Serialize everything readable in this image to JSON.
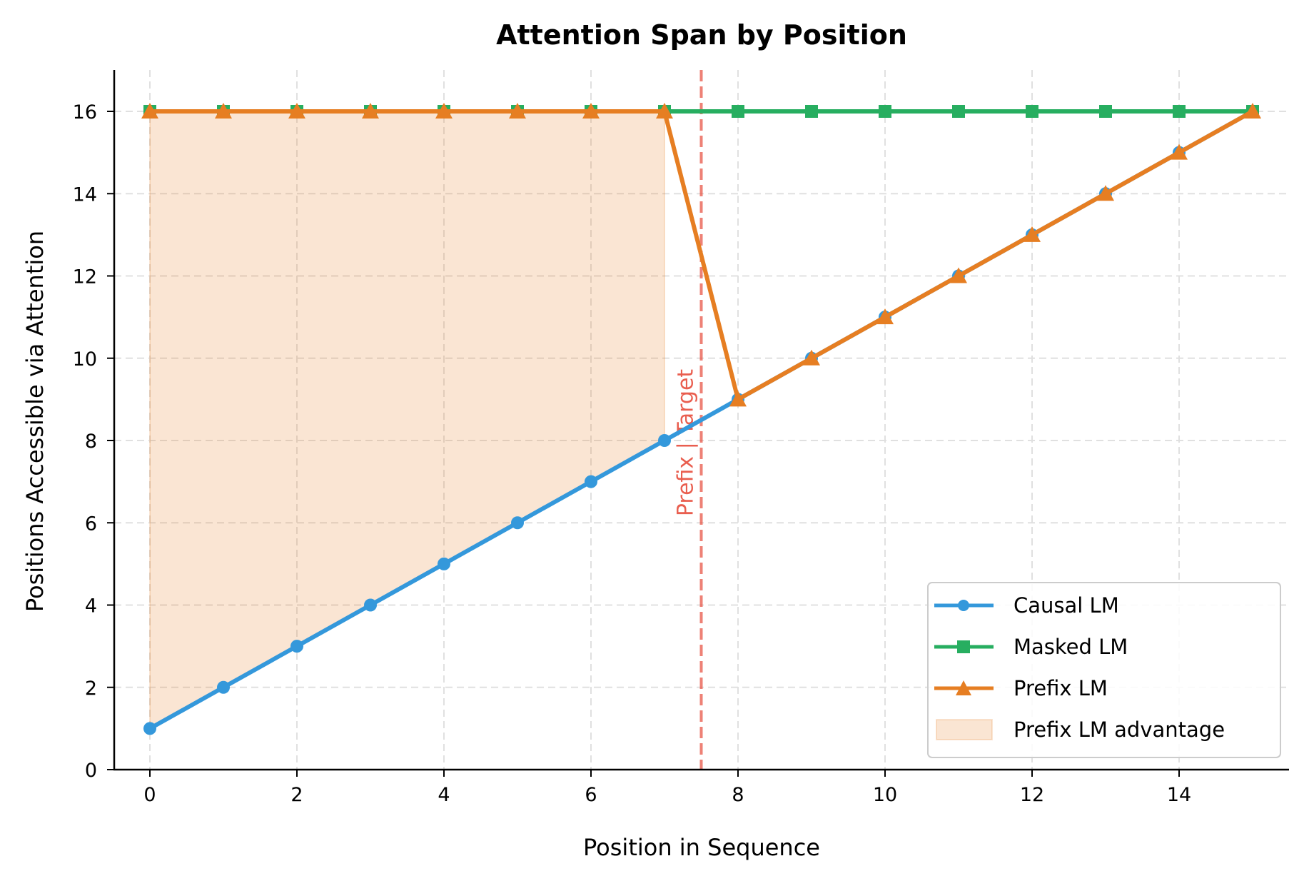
{
  "chart_data": {
    "type": "line",
    "title": "Attention Span by Position",
    "xlabel": "Position in Sequence",
    "ylabel": "Positions Accessible via Attention",
    "x": [
      0,
      1,
      2,
      3,
      4,
      5,
      6,
      7,
      8,
      9,
      10,
      11,
      12,
      13,
      14,
      15
    ],
    "xlim": [
      -0.5,
      15.5
    ],
    "ylim": [
      0,
      17
    ],
    "xticks": [
      0,
      2,
      4,
      6,
      8,
      10,
      12,
      14
    ],
    "yticks": [
      0,
      2,
      4,
      6,
      8,
      10,
      12,
      14,
      16
    ],
    "grid": true,
    "legend_position": "lower right",
    "series": [
      {
        "name": "Causal LM",
        "color": "#3498db",
        "marker": "circle",
        "values": [
          1,
          2,
          3,
          4,
          5,
          6,
          7,
          8,
          9,
          10,
          11,
          12,
          13,
          14,
          15,
          16
        ]
      },
      {
        "name": "Masked LM",
        "color": "#27ae60",
        "marker": "square",
        "values": [
          16,
          16,
          16,
          16,
          16,
          16,
          16,
          16,
          16,
          16,
          16,
          16,
          16,
          16,
          16,
          16
        ]
      },
      {
        "name": "Prefix LM",
        "color": "#e67e22",
        "marker": "triangle",
        "values": [
          16,
          16,
          16,
          16,
          16,
          16,
          16,
          16,
          9,
          10,
          11,
          12,
          13,
          14,
          15,
          16
        ]
      }
    ],
    "fill": {
      "name": "Prefix LM advantage",
      "color": "#e67e22",
      "alpha": 0.2,
      "x_range": [
        0,
        7
      ],
      "between": [
        "Causal LM",
        "Prefix LM"
      ]
    },
    "annotations": [
      {
        "type": "vline",
        "x": 7.5,
        "color": "#e74c3c",
        "style": "dashed",
        "label": "Prefix | Target"
      }
    ]
  },
  "legend": {
    "items": [
      {
        "label": "Causal LM"
      },
      {
        "label": "Masked LM"
      },
      {
        "label": "Prefix LM"
      },
      {
        "label": "Prefix LM advantage"
      }
    ]
  }
}
